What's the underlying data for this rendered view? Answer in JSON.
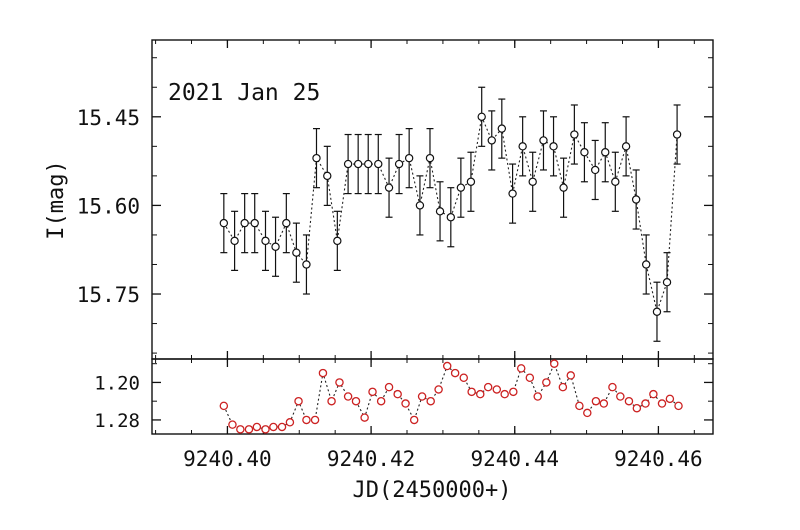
{
  "chart_data": [
    {
      "type": "scatter",
      "title": "",
      "annotation": "2021 Jan 25",
      "ylabel": "I(mag)",
      "xlim": [
        9240.3895,
        9240.4676
      ],
      "ylim": [
        15.86,
        15.32
      ],
      "y_inverted": true,
      "x_ticks": [
        9240.4,
        9240.42,
        9240.44,
        9240.46
      ],
      "y_ticks": [
        15.45,
        15.6,
        15.75
      ],
      "y_tick_labels": [
        "15.45",
        "15.60",
        "15.75"
      ],
      "marker": "open-circle",
      "color": "#111111",
      "connect": "dotted",
      "error_bars": true,
      "x": [
        9240.3995,
        9240.401,
        9240.4024,
        9240.4038,
        9240.4053,
        9240.4067,
        9240.4082,
        9240.4096,
        9240.411,
        9240.4124,
        9240.4139,
        9240.4153,
        9240.4168,
        9240.4182,
        9240.4196,
        9240.421,
        9240.4225,
        9240.4239,
        9240.4253,
        9240.4268,
        9240.4282,
        9240.4296,
        9240.4311,
        9240.4325,
        9240.4339,
        9240.4354,
        9240.4368,
        9240.4382,
        9240.4397,
        9240.4411,
        9240.4425,
        9240.444,
        9240.4454,
        9240.4468,
        9240.4483,
        9240.4497,
        9240.4512,
        9240.4526,
        9240.454,
        9240.4555,
        9240.4569,
        9240.4583,
        9240.4598,
        9240.4612,
        9240.4626
      ],
      "y": [
        15.63,
        15.66,
        15.63,
        15.63,
        15.66,
        15.67,
        15.63,
        15.68,
        15.7,
        15.52,
        15.55,
        15.66,
        15.53,
        15.53,
        15.53,
        15.53,
        15.57,
        15.53,
        15.52,
        15.6,
        15.52,
        15.61,
        15.62,
        15.57,
        15.56,
        15.45,
        15.49,
        15.47,
        15.58,
        15.5,
        15.56,
        15.49,
        15.5,
        15.57,
        15.48,
        15.51,
        15.54,
        15.51,
        15.56,
        15.5,
        15.59,
        15.7,
        15.78,
        15.73,
        15.48
      ],
      "y_err": [
        0.05,
        0.05,
        0.05,
        0.05,
        0.05,
        0.05,
        0.05,
        0.05,
        0.05,
        0.05,
        0.05,
        0.05,
        0.05,
        0.05,
        0.05,
        0.05,
        0.05,
        0.05,
        0.05,
        0.05,
        0.05,
        0.05,
        0.05,
        0.05,
        0.05,
        0.05,
        0.05,
        0.05,
        0.05,
        0.05,
        0.05,
        0.05,
        0.05,
        0.05,
        0.05,
        0.05,
        0.05,
        0.05,
        0.05,
        0.05,
        0.05,
        0.05,
        0.05,
        0.05,
        0.05
      ]
    },
    {
      "type": "scatter",
      "title": "",
      "xlabel": "JD(2450000+)",
      "ylabel": "",
      "xlim": [
        9240.3895,
        9240.4676
      ],
      "ylim": [
        1.31,
        1.15
      ],
      "y_inverted": true,
      "x_ticks": [
        9240.4,
        9240.42,
        9240.44,
        9240.46
      ],
      "x_tick_labels": [
        "9240.40",
        "9240.42",
        "9240.44",
        "9240.46"
      ],
      "y_ticks": [
        1.2,
        1.28
      ],
      "y_tick_labels": [
        "1.20",
        "1.28"
      ],
      "marker": "open-circle",
      "color": "#cc2222",
      "connect": "dotted",
      "x": [
        9240.3995,
        9240.4007,
        9240.4018,
        9240.403,
        9240.4041,
        9240.4053,
        9240.4064,
        9240.4076,
        9240.4087,
        9240.4099,
        9240.411,
        9240.4122,
        9240.4133,
        9240.4145,
        9240.4156,
        9240.4168,
        9240.4179,
        9240.4191,
        9240.4202,
        9240.4214,
        9240.4225,
        9240.4237,
        9240.4248,
        9240.426,
        9240.4271,
        9240.4283,
        9240.4294,
        9240.4306,
        9240.4317,
        9240.4329,
        9240.434,
        9240.4352,
        9240.4363,
        9240.4375,
        9240.4386,
        9240.4398,
        9240.4409,
        9240.4421,
        9240.4432,
        9240.4444,
        9240.4455,
        9240.4467,
        9240.4478,
        9240.449,
        9240.4501,
        9240.4513,
        9240.4524,
        9240.4536,
        9240.4547,
        9240.4559,
        9240.457,
        9240.4582,
        9240.4593,
        9240.4605,
        9240.4616,
        9240.4628
      ],
      "y": [
        1.25,
        1.29,
        1.3,
        1.3,
        1.295,
        1.3,
        1.295,
        1.295,
        1.285,
        1.24,
        1.28,
        1.28,
        1.18,
        1.24,
        1.2,
        1.23,
        1.24,
        1.275,
        1.22,
        1.24,
        1.21,
        1.225,
        1.245,
        1.28,
        1.23,
        1.24,
        1.215,
        1.165,
        1.18,
        1.19,
        1.22,
        1.225,
        1.21,
        1.215,
        1.225,
        1.22,
        1.17,
        1.19,
        1.23,
        1.2,
        1.16,
        1.21,
        1.185,
        1.25,
        1.265,
        1.24,
        1.245,
        1.21,
        1.23,
        1.24,
        1.255,
        1.245,
        1.225,
        1.245,
        1.235,
        1.25
      ]
    }
  ]
}
